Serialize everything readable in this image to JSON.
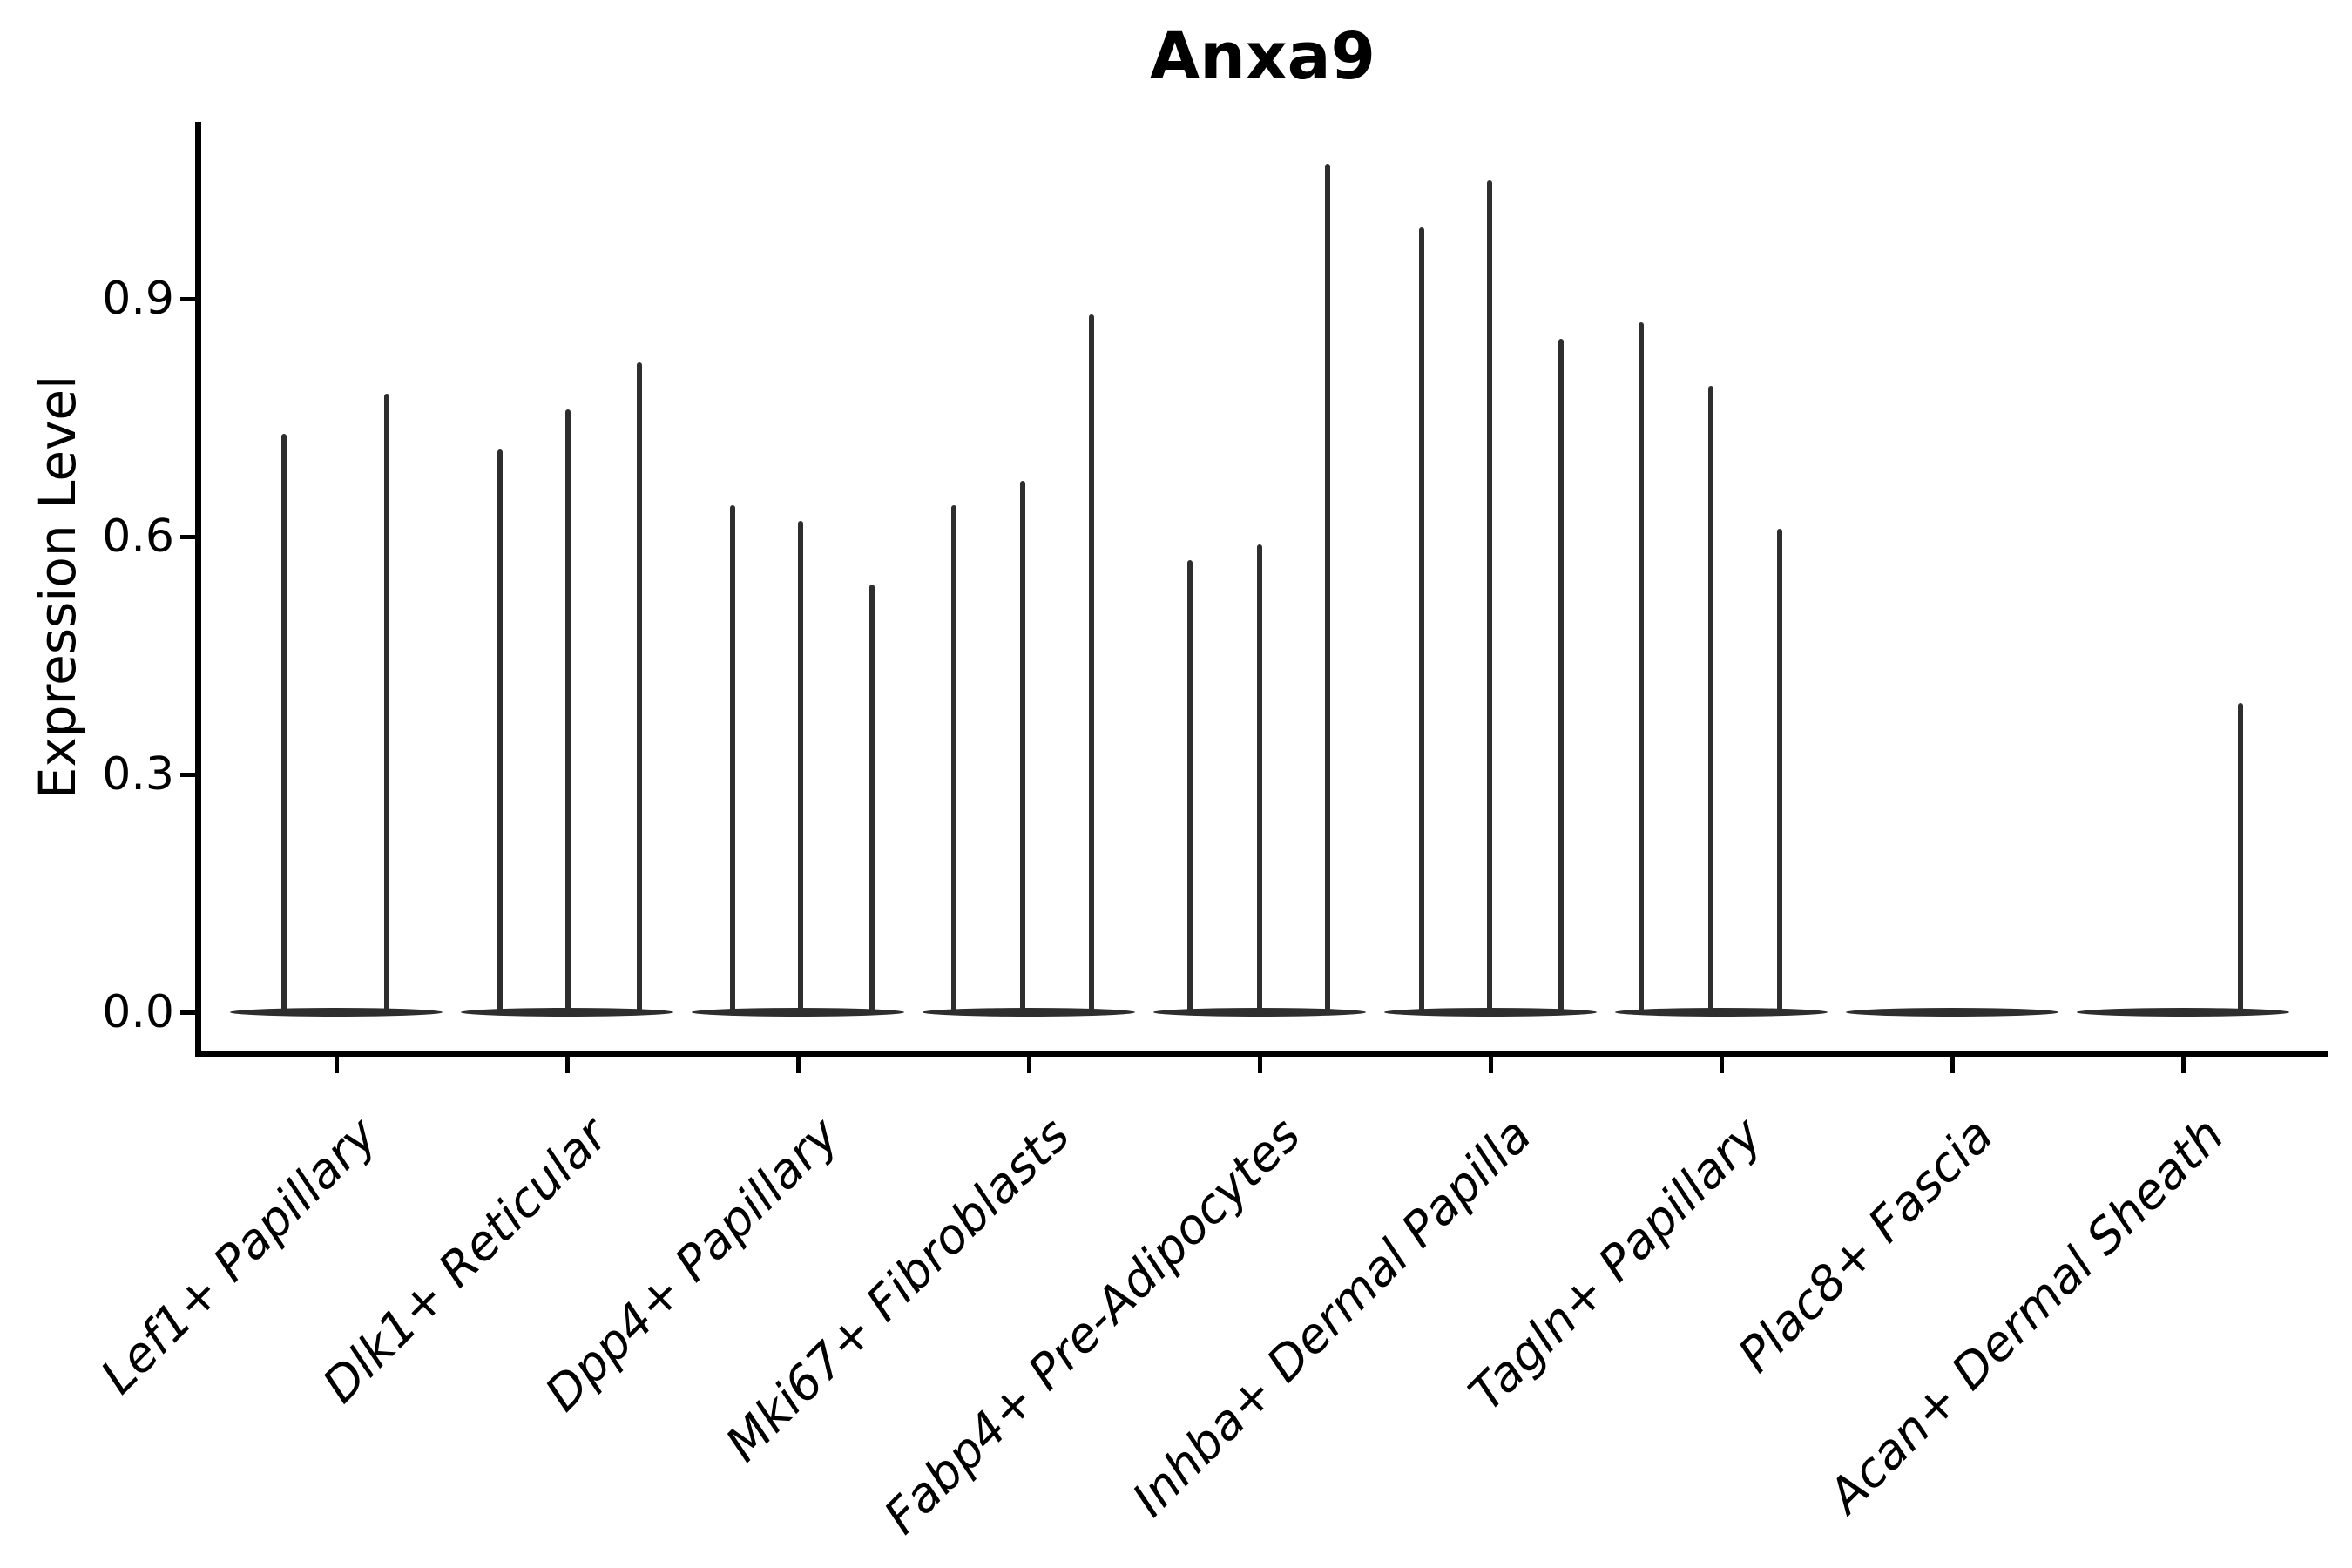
{
  "title": "Anxa9",
  "axes": {
    "ylabel": "Expression Level"
  },
  "chart_data": {
    "type": "violin",
    "title": "Anxa9",
    "xlabel": "",
    "ylabel": "Expression Level",
    "ylim": [
      0,
      1.12
    ],
    "yticks": [
      "0.0",
      "0.3",
      "0.6",
      "0.9"
    ],
    "ytick_values": [
      0.0,
      0.3,
      0.6,
      0.9
    ],
    "grid": false,
    "legend": "none",
    "violin_color": "#2e2e2e",
    "axis_color": "#000000",
    "background_color": "#ffffff",
    "x_label_style": "italic, rotated 45deg, right-anchored",
    "categories": [
      "Lef1+ Papillary",
      "Dlk1+ Reticular",
      "Dpp4+ Papillary",
      "Mki67+ Fibroblasts",
      "Fabp4+ Pre-Adipocytes",
      "Inhba+ Dermal Papilla",
      "Tagln+ Papillary",
      "Plac8+ Fascia",
      "Acan+ Dermal Sheath"
    ],
    "series": [
      {
        "category": "Lef1+ Papillary",
        "violins": [
          {
            "dx": -60,
            "max": 0.73
          },
          {
            "dx": 58,
            "max": 0.78
          }
        ]
      },
      {
        "category": "Dlk1+ Reticular",
        "violins": [
          {
            "dx": -77,
            "max": 0.71
          },
          {
            "dx": 1,
            "max": 0.76
          },
          {
            "dx": 83,
            "max": 0.82
          }
        ]
      },
      {
        "category": "Dpp4+ Papillary",
        "violins": [
          {
            "dx": -75,
            "max": 0.64
          },
          {
            "dx": 3,
            "max": 0.62
          },
          {
            "dx": 85,
            "max": 0.54
          }
        ]
      },
      {
        "category": "Mki67+ Fibroblasts",
        "violins": [
          {
            "dx": -86,
            "max": 0.64
          },
          {
            "dx": -7,
            "max": 0.67
          },
          {
            "dx": 72,
            "max": 0.88
          }
        ]
      },
      {
        "category": "Fabp4+ Pre-Adipocytes",
        "violins": [
          {
            "dx": -80,
            "max": 0.57
          },
          {
            "dx": 0,
            "max": 0.59
          },
          {
            "dx": 78,
            "max": 1.07
          }
        ]
      },
      {
        "category": "Inhba+ Dermal Papilla",
        "violins": [
          {
            "dx": -79,
            "max": 0.99
          },
          {
            "dx": -1,
            "max": 1.05
          },
          {
            "dx": 81,
            "max": 0.85
          }
        ]
      },
      {
        "category": "Tagln+ Papillary",
        "violins": [
          {
            "dx": -92,
            "max": 0.87
          },
          {
            "dx": -12,
            "max": 0.79
          },
          {
            "dx": 67,
            "max": 0.61
          }
        ]
      },
      {
        "category": "Plac8+ Fascia",
        "violins": []
      },
      {
        "category": "Acan+ Dermal Sheath",
        "violins": [
          {
            "dx": 66,
            "max": 0.39
          }
        ]
      }
    ]
  }
}
